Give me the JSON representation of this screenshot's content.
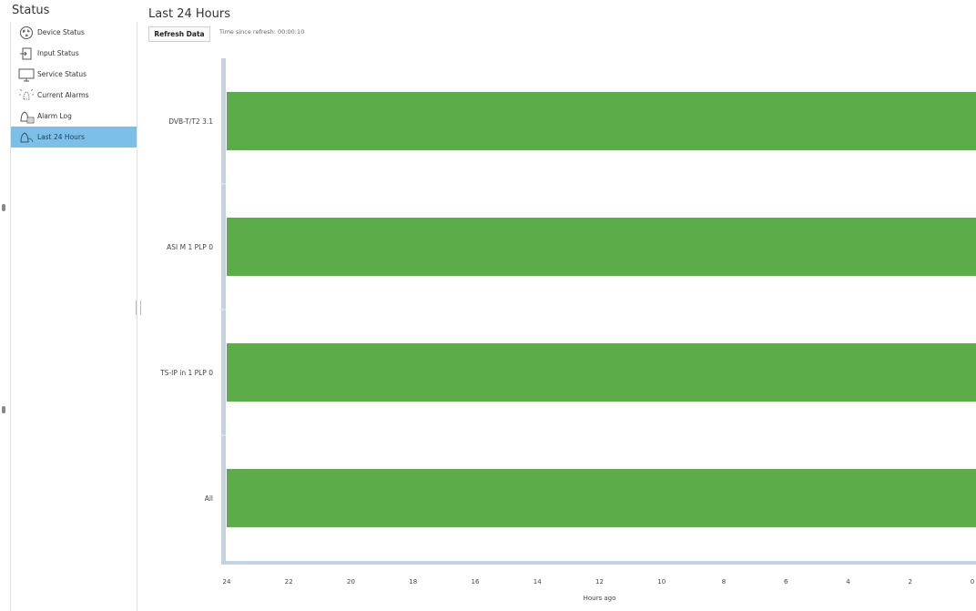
{
  "sidebar": {
    "title": "Status",
    "items": [
      {
        "label": "Device Status",
        "icon": "globe-icon",
        "active": false
      },
      {
        "label": "Input Status",
        "icon": "input-icon",
        "active": false
      },
      {
        "label": "Service Status",
        "icon": "monitor-icon",
        "active": false
      },
      {
        "label": "Current Alarms",
        "icon": "alarm-icon",
        "active": false
      },
      {
        "label": "Alarm Log",
        "icon": "bell-log-icon",
        "active": false
      },
      {
        "label": "Last 24 Hours",
        "icon": "bell-icon",
        "active": true
      }
    ]
  },
  "main": {
    "title": "Last 24 Hours",
    "refresh_button": "Refresh Data",
    "refresh_info": "Time since refresh: 00:00:10"
  },
  "colors": {
    "bar": "#5cad4a",
    "active_nav": "#7cc0ea",
    "axis": "#c5d3e0"
  },
  "chart_data": {
    "type": "bar",
    "orientation": "horizontal",
    "categories": [
      "DVB-T/T2 3.1",
      "ASI M 1 PLP 0",
      "TS-IP in 1 PLP 0",
      "All"
    ],
    "segments": [
      {
        "category": "DVB-T/T2 3.1",
        "from": 24,
        "to": 0,
        "status": "ok"
      },
      {
        "category": "ASI M 1 PLP 0",
        "from": 24,
        "to": 0,
        "status": "ok"
      },
      {
        "category": "TS-IP in 1 PLP 0",
        "from": 24,
        "to": 0,
        "status": "ok"
      },
      {
        "category": "All",
        "from": 24,
        "to": 0,
        "status": "ok"
      }
    ],
    "xlabel": "Hours ago",
    "xlim": [
      24,
      0
    ],
    "x_ticks": [
      24,
      22,
      20,
      18,
      16,
      14,
      12,
      10,
      8,
      6,
      4,
      2,
      0
    ],
    "grid": false
  }
}
